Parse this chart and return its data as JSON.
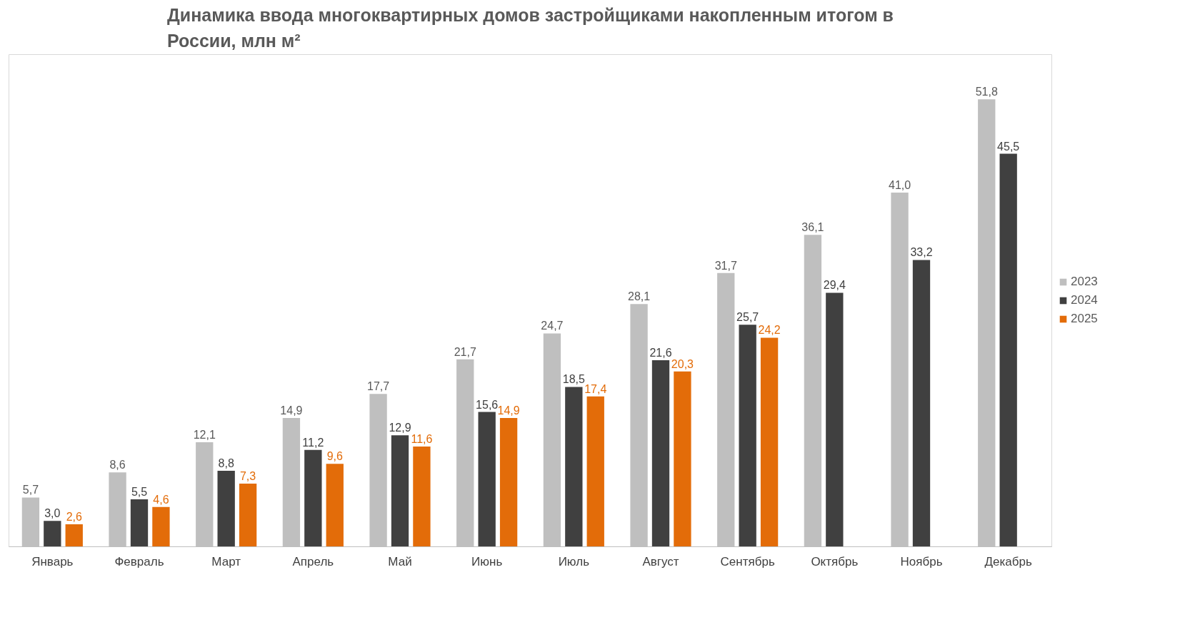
{
  "chart_data": {
    "type": "bar",
    "title": "Динамика ввода многоквартирных домов застройщиками накопленным итогом в России, млн м²",
    "categories": [
      "Январь",
      "Февраль",
      "Март",
      "Апрель",
      "Май",
      "Июнь",
      "Июль",
      "Август",
      "Сентябрь",
      "Октябрь",
      "Ноябрь",
      "Декабрь"
    ],
    "series": [
      {
        "name": "2023",
        "color": "#bfbfbf",
        "values": [
          5.7,
          8.6,
          12.1,
          14.9,
          17.7,
          21.7,
          24.7,
          28.1,
          31.7,
          36.1,
          41.0,
          51.8
        ],
        "value_labels": [
          "5,7",
          "8,6",
          "12,1",
          "14,9",
          "17,7",
          "21,7",
          "24,7",
          "28,1",
          "31,7",
          "36,1",
          "41,0",
          "51,8"
        ]
      },
      {
        "name": "2024",
        "color": "#404040",
        "values": [
          3.0,
          5.5,
          8.8,
          11.2,
          12.9,
          15.6,
          18.5,
          21.6,
          25.7,
          29.4,
          33.2,
          45.5
        ],
        "value_labels": [
          "3,0",
          "5,5",
          "8,8",
          "11,2",
          "12,9",
          "15,6",
          "18,5",
          "21,6",
          "25,7",
          "29,4",
          "33,2",
          "45,5"
        ]
      },
      {
        "name": "2025",
        "color": "#e36c09",
        "values": [
          2.6,
          4.6,
          7.3,
          9.6,
          11.6,
          14.9,
          17.4,
          20.3,
          24.2,
          null,
          null,
          null
        ],
        "value_labels": [
          "2,6",
          "4,6",
          "7,3",
          "9,6",
          "11,6",
          "14,9",
          "17,4",
          "20,3",
          "24,2",
          null,
          null,
          null
        ]
      }
    ],
    "legend": "right",
    "grid": false
  }
}
